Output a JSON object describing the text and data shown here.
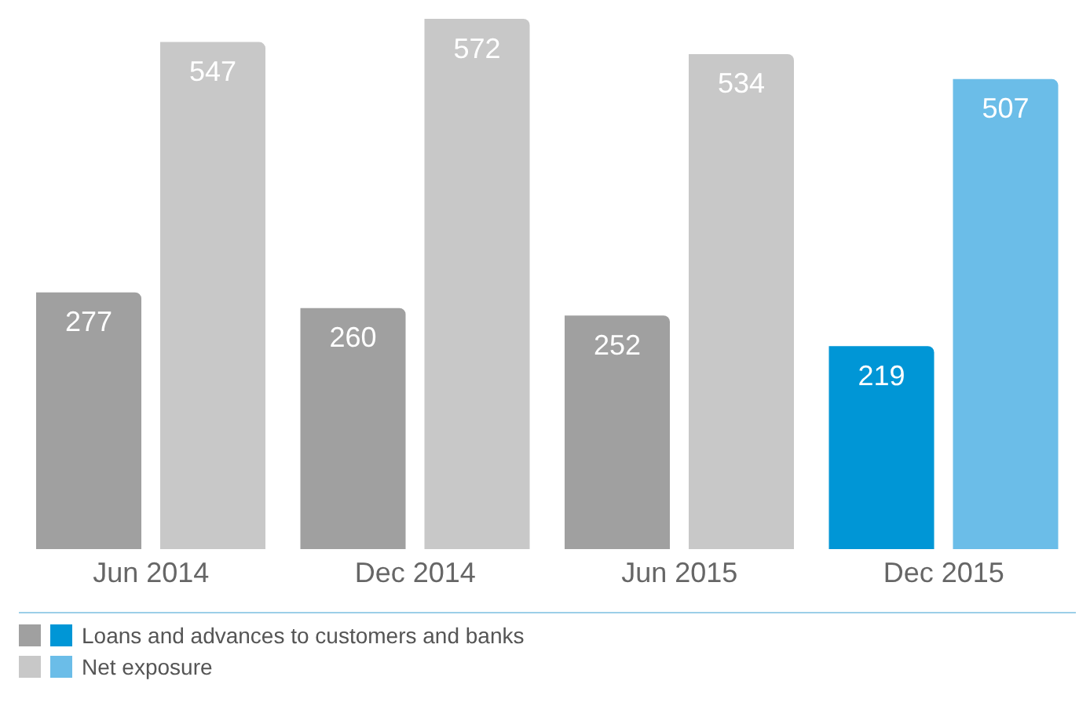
{
  "chart_data": {
    "type": "bar",
    "categories": [
      "Jun 2014",
      "Dec 2014",
      "Jun 2015",
      "Dec 2015"
    ],
    "series": [
      {
        "name": "Loans and advances to customers and banks",
        "colors": [
          "#a0a0a0",
          "#a0a0a0",
          "#a0a0a0",
          "#0096d6"
        ],
        "values": [
          277,
          260,
          252,
          219
        ]
      },
      {
        "name": "Net exposure",
        "colors": [
          "#c8c8c8",
          "#c8c8c8",
          "#c8c8c8",
          "#6bbde8"
        ],
        "values": [
          547,
          572,
          534,
          507
        ]
      }
    ],
    "data_labels": true,
    "legend": "bottom left",
    "grid": false
  }
}
